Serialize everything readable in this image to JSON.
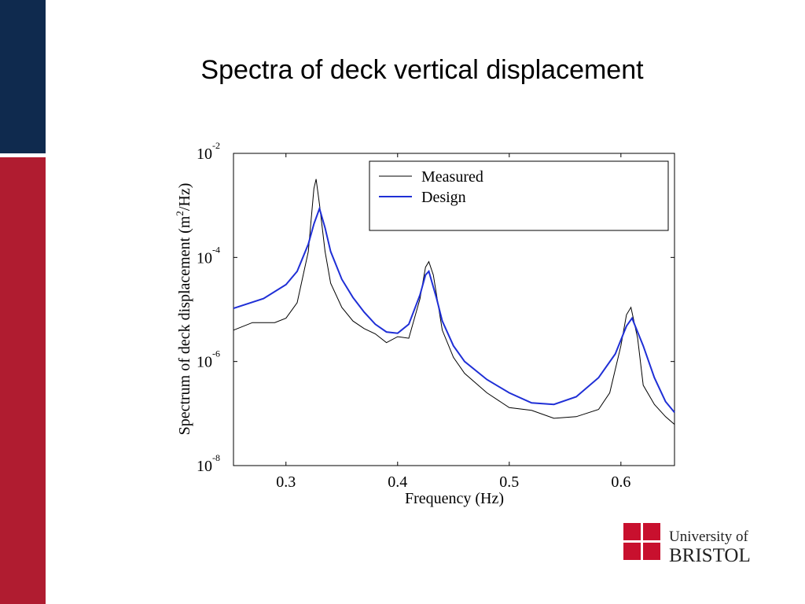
{
  "chart_data": {
    "type": "line",
    "title": "Spectra of deck vertical displacement",
    "xlabel": "Frequency (Hz)",
    "ylabel": {
      "text": "Spectrum of deck displacement (m",
      "sup": "2",
      "end": "/Hz)"
    },
    "xlim": [
      0.253,
      0.648
    ],
    "xticks": [
      0.3,
      0.4,
      0.5,
      0.6
    ],
    "ylim": [
      1e-08,
      0.01
    ],
    "yscale": "log",
    "yticks": [
      {
        "value": 1e-08,
        "label": "10",
        "exponent": "-8"
      },
      {
        "value": 1e-06,
        "label": "10",
        "exponent": "-6"
      },
      {
        "value": 0.0001,
        "label": "10",
        "exponent": "-4"
      },
      {
        "value": 0.01,
        "label": "10",
        "exponent": "-2"
      }
    ],
    "grid": false,
    "legend": "upper right",
    "series": [
      {
        "name": "Measured",
        "color": "#000000",
        "x": [
          0.253,
          0.27,
          0.29,
          0.3,
          0.31,
          0.32,
          0.325,
          0.327,
          0.33,
          0.335,
          0.34,
          0.35,
          0.36,
          0.37,
          0.38,
          0.39,
          0.4,
          0.41,
          0.42,
          0.425,
          0.428,
          0.432,
          0.44,
          0.45,
          0.46,
          0.48,
          0.5,
          0.52,
          0.54,
          0.56,
          0.58,
          0.59,
          0.6,
          0.605,
          0.609,
          0.615,
          0.62,
          0.63,
          0.64,
          0.648
        ],
        "values": [
          4e-06,
          5.6e-06,
          5.6e-06,
          6.8e-06,
          1.35e-05,
          0.00013,
          0.0021,
          0.0032,
          0.00105,
          0.00013,
          3.2e-05,
          1.1e-05,
          6e-06,
          4.3e-06,
          3.4e-06,
          2.3e-06,
          3e-06,
          2.8e-06,
          1.6e-05,
          6.5e-05,
          8.3e-05,
          4.6e-05,
          4e-06,
          1.2e-06,
          5.9e-07,
          2.5e-07,
          1.3e-07,
          1.15e-07,
          8.1e-08,
          8.7e-08,
          1.2e-07,
          2.5e-07,
          2e-06,
          7.9e-06,
          1.1e-05,
          2.8e-06,
          3.5e-07,
          1.5e-07,
          8.7e-08,
          6.2e-08
        ]
      },
      {
        "name": "Design",
        "color": "#1f2fd6",
        "x": [
          0.253,
          0.28,
          0.3,
          0.31,
          0.32,
          0.325,
          0.33,
          0.335,
          0.34,
          0.35,
          0.36,
          0.37,
          0.38,
          0.39,
          0.4,
          0.41,
          0.42,
          0.425,
          0.428,
          0.435,
          0.44,
          0.45,
          0.46,
          0.48,
          0.5,
          0.52,
          0.54,
          0.56,
          0.58,
          0.595,
          0.605,
          0.61,
          0.62,
          0.63,
          0.64,
          0.648
        ],
        "values": [
          1.05e-05,
          1.62e-05,
          3e-05,
          5.4e-05,
          0.00018,
          0.00044,
          0.00087,
          0.00037,
          0.00013,
          3.8e-05,
          1.7e-05,
          8.9e-06,
          5.2e-06,
          3.7e-06,
          3.5e-06,
          5.2e-06,
          1.9e-05,
          4.6e-05,
          5.4e-05,
          1.6e-05,
          6e-06,
          2e-06,
          1e-06,
          4.5e-07,
          2.5e-07,
          1.6e-07,
          1.5e-07,
          2.1e-07,
          4.9e-07,
          1.4e-06,
          4.8e-06,
          6.8e-06,
          2e-06,
          4.9e-07,
          1.7e-07,
          1.05e-07
        ]
      }
    ]
  },
  "logo": {
    "line1": "University of",
    "line2": "BRISTOL"
  }
}
